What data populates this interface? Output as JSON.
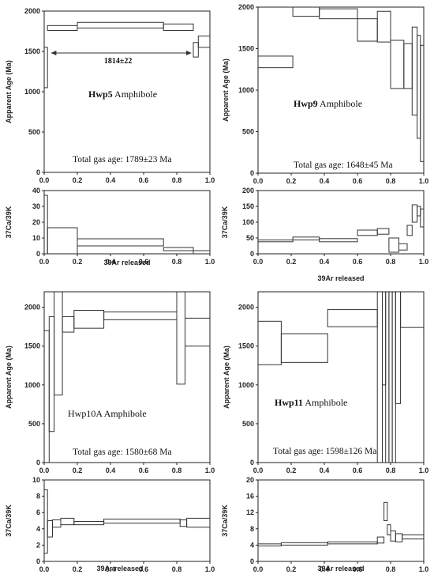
{
  "chart_data": [
    {
      "id": "hwp5",
      "type": "step",
      "sample_bold": "Hwp5",
      "sample_rest": " Amphibole",
      "total_gas_age": "Total gas age: 1789±23 Ma",
      "plateau_label": "1814±22",
      "plateau_range": [
        0.04,
        0.89
      ],
      "age_panel": {
        "ylabel": "Apparent Age (Ma)",
        "ylim": [
          0,
          2000
        ],
        "yticks": [
          0,
          500,
          1000,
          1500,
          2000
        ],
        "xlim": [
          0,
          1
        ],
        "steps": [
          [
            0,
            0.02,
            1050,
            1550
          ],
          [
            0.02,
            0.2,
            1760,
            1820
          ],
          [
            0.2,
            0.72,
            1790,
            1860
          ],
          [
            0.72,
            0.9,
            1760,
            1840
          ],
          [
            0.9,
            0.93,
            1430,
            1610
          ],
          [
            0.93,
            1.0,
            1550,
            1690
          ]
        ]
      },
      "ratio_panel": {
        "ylabel": "37Ca/39K",
        "ylim": [
          0,
          40
        ],
        "yticks": [
          0,
          10,
          20,
          30,
          40
        ],
        "xlim": [
          0,
          1
        ],
        "steps": [
          [
            0,
            0.02,
            0,
            37
          ],
          [
            0.02,
            0.2,
            0,
            16.5
          ],
          [
            0.2,
            0.72,
            5,
            9.5
          ],
          [
            0.72,
            0.9,
            2,
            4
          ],
          [
            0.9,
            1.0,
            0,
            2
          ]
        ]
      },
      "xticks": [
        "0.0",
        "0.2",
        "0.4",
        "0.6",
        "0.8",
        "1.0"
      ],
      "xlabel": "39Ar released"
    },
    {
      "id": "hwp9",
      "type": "step",
      "sample_bold": "Hwp9",
      "sample_rest": " Amphibole",
      "total_gas_age": "Total gas age: 1648±45 Ma",
      "age_panel": {
        "ylabel": "Apparent Age (Ma)",
        "ylim": [
          0,
          2000
        ],
        "yticks": [
          0,
          500,
          1000,
          1500,
          2000
        ],
        "xlim": [
          0,
          1
        ],
        "steps": [
          [
            0,
            0.21,
            1270,
            1410
          ],
          [
            0.21,
            0.37,
            1890,
            2030
          ],
          [
            0.37,
            0.6,
            1860,
            1980
          ],
          [
            0.6,
            0.72,
            1590,
            1860
          ],
          [
            0.72,
            0.8,
            1580,
            1950
          ],
          [
            0.8,
            0.88,
            1020,
            1600
          ],
          [
            0.88,
            0.93,
            1020,
            1560
          ],
          [
            0.93,
            0.96,
            700,
            1760
          ],
          [
            0.96,
            0.98,
            420,
            1660
          ],
          [
            0.98,
            1.0,
            140,
            1540
          ]
        ]
      },
      "ratio_panel": {
        "ylabel": "37Ca/39K",
        "ylim": [
          0,
          200
        ],
        "yticks": [
          0,
          50,
          100,
          150,
          200
        ],
        "xlim": [
          0,
          1
        ],
        "steps": [
          [
            0,
            0.21,
            38,
            44
          ],
          [
            0.21,
            0.37,
            44,
            53
          ],
          [
            0.37,
            0.6,
            38,
            48
          ],
          [
            0.6,
            0.72,
            58,
            75
          ],
          [
            0.72,
            0.79,
            62,
            80
          ],
          [
            0.79,
            0.85,
            5,
            50
          ],
          [
            0.85,
            0.9,
            12,
            32
          ],
          [
            0.9,
            0.93,
            58,
            90
          ],
          [
            0.93,
            0.96,
            100,
            155
          ],
          [
            0.96,
            0.98,
            120,
            150
          ],
          [
            0.98,
            1.0,
            85,
            142
          ]
        ]
      },
      "xticks": [
        "0.0",
        "0.2",
        "0.4",
        "0.6",
        "0.8",
        "1.0"
      ],
      "xlabel": "39Ar released"
    },
    {
      "id": "hwp10a",
      "type": "step",
      "sample_bold": "",
      "sample_rest": "Hwp10A  Amphibole",
      "total_gas_age": "Total gas age: 1580±68 Ma",
      "age_panel": {
        "ylabel": "Apparent Age (Ma)",
        "ylim": [
          0,
          2200
        ],
        "yticks": [
          0,
          500,
          1000,
          1500,
          2000
        ],
        "xlim": [
          0,
          1
        ],
        "steps": [
          [
            0,
            0.03,
            0,
            1700
          ],
          [
            0.03,
            0.06,
            400,
            1880
          ],
          [
            0.06,
            0.11,
            870,
            2200
          ],
          [
            0.11,
            0.18,
            1680,
            1880
          ],
          [
            0.18,
            0.36,
            1730,
            1960
          ],
          [
            0.36,
            0.8,
            1840,
            1940
          ],
          [
            0.8,
            0.85,
            1010,
            2200
          ],
          [
            0.85,
            1.0,
            1500,
            1860
          ]
        ]
      },
      "ratio_panel": {
        "ylabel": "37Ca/39K",
        "ylim": [
          0,
          10
        ],
        "yticks": [
          0,
          2,
          4,
          6,
          8,
          10
        ],
        "xlim": [
          0,
          1
        ],
        "steps": [
          [
            0,
            0.02,
            1,
            8.8
          ],
          [
            0.02,
            0.05,
            3,
            5
          ],
          [
            0.05,
            0.1,
            4.2,
            5.1
          ],
          [
            0.1,
            0.18,
            4.5,
            5.3
          ],
          [
            0.18,
            0.36,
            4.5,
            4.9
          ],
          [
            0.36,
            0.82,
            4.7,
            5.2
          ],
          [
            0.82,
            0.86,
            4.3,
            5.1
          ],
          [
            0.86,
            1.0,
            4.2,
            5.3
          ]
        ]
      },
      "xticks": [
        "0.0",
        "0.2",
        "0.4",
        "0.6",
        "0.8",
        "1.0"
      ],
      "xlabel": "39Ar released"
    },
    {
      "id": "hwp11",
      "type": "step",
      "sample_bold": "Hwp11",
      "sample_rest": " Amphibole",
      "total_gas_age": "Total gas age: 1598±126 Ma",
      "age_panel": {
        "ylabel": "Apparent Age (Ma)",
        "ylim": [
          0,
          2200
        ],
        "yticks": [
          0,
          500,
          1000,
          1500,
          2000
        ],
        "xlim": [
          0,
          1
        ],
        "steps": [
          [
            0,
            0.14,
            1260,
            1820
          ],
          [
            0.14,
            0.42,
            1290,
            1660
          ],
          [
            0.42,
            0.72,
            1750,
            1970
          ],
          [
            0.72,
            0.75,
            0,
            2200
          ],
          [
            0.75,
            0.77,
            1000,
            2200
          ],
          [
            0.77,
            0.79,
            0,
            2200
          ],
          [
            0.79,
            0.81,
            0,
            2200
          ],
          [
            0.81,
            0.83,
            0,
            2200
          ],
          [
            0.83,
            0.86,
            760,
            2200
          ],
          [
            0.86,
            1.0,
            1740,
            2200
          ]
        ]
      },
      "ratio_panel": {
        "ylabel": "37Ca/39K",
        "ylim": [
          0,
          20
        ],
        "yticks": [
          0,
          4,
          8,
          12,
          16,
          20
        ],
        "xlim": [
          0,
          1
        ],
        "steps": [
          [
            0,
            0.14,
            3.8,
            4.3
          ],
          [
            0.14,
            0.42,
            4.0,
            4.6
          ],
          [
            0.42,
            0.72,
            4.3,
            4.8
          ],
          [
            0.72,
            0.76,
            4.5,
            6.0
          ],
          [
            0.76,
            0.78,
            10,
            14.5
          ],
          [
            0.78,
            0.8,
            6.5,
            9
          ],
          [
            0.8,
            0.83,
            5,
            7.5
          ],
          [
            0.83,
            0.87,
            4.8,
            6.8
          ],
          [
            0.87,
            1.0,
            5.5,
            6.5
          ]
        ]
      },
      "xticks": [
        "0.0",
        "0.2",
        "0.4",
        "0.6",
        "0.8",
        "1.0"
      ],
      "xlabel": "39Ar released"
    }
  ]
}
